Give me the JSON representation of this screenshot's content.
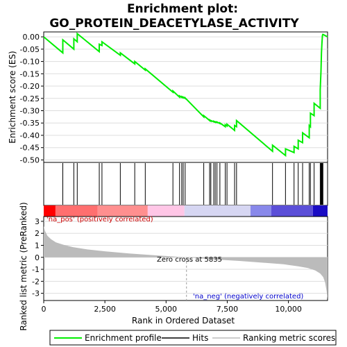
{
  "chart_data": {
    "type": "line",
    "title_line1": "Enrichment plot:",
    "title_line2": "GO_PROTEIN_DEACETYLASE_ACTIVITY",
    "xlabel": "Rank in Ordered Dataset",
    "ylabel_top": "Enrichment score (ES)",
    "ylabel_bottom": "Ranked list metric (PreRanked)",
    "xlim": [
      0,
      11600
    ],
    "es_ylim": [
      -0.51,
      0.02
    ],
    "metric_ylim": [
      -3.6,
      3.4
    ],
    "x_ticks": [
      0,
      2500,
      5000,
      7500,
      10000
    ],
    "x_tick_labels": [
      "0",
      "2,500",
      "5,000",
      "7,500",
      "10,000"
    ],
    "es_ticks": [
      0.0,
      -0.05,
      -0.1,
      -0.15,
      -0.2,
      -0.25,
      -0.3,
      -0.35,
      -0.4,
      -0.45,
      -0.5
    ],
    "es_tick_labels": [
      "0.00",
      "-0.05",
      "-0.10",
      "-0.15",
      "-0.20",
      "-0.25",
      "-0.30",
      "-0.35",
      "-0.40",
      "-0.45",
      "-0.50"
    ],
    "metric_ticks": [
      3,
      2,
      1,
      0,
      -1,
      -2,
      -3
    ],
    "metric_tick_labels": [
      "3",
      "2",
      "1",
      "0",
      "-1",
      "-2",
      "-3"
    ],
    "hits": [
      780,
      1230,
      1370,
      2270,
      2380,
      3130,
      3720,
      4150,
      5280,
      5550,
      5640,
      5700,
      5780,
      6540,
      6780,
      6830,
      6950,
      7010,
      7080,
      7200,
      7420,
      7490,
      7800,
      7880,
      9350,
      9880,
      10230,
      10400,
      10580,
      10850,
      10900,
      11050,
      11300,
      11330,
      11350,
      11370,
      11390,
      11410
    ],
    "es_profile": {
      "x": [
        0,
        780,
        780,
        1230,
        1230,
        1370,
        1370,
        2270,
        2270,
        2380,
        2380,
        3130,
        3130,
        3720,
        3720,
        4150,
        4150,
        5280,
        5280,
        5550,
        5550,
        5640,
        5640,
        5700,
        5700,
        5780,
        5780,
        6540,
        6540,
        6780,
        6780,
        6830,
        6830,
        6950,
        6950,
        7010,
        7010,
        7080,
        7080,
        7200,
        7200,
        7420,
        7420,
        7490,
        7490,
        7800,
        7800,
        7880,
        7880,
        9350,
        9350,
        9880,
        9880,
        10230,
        10230,
        10400,
        10400,
        10580,
        10580,
        10850,
        10850,
        10900,
        10900,
        11050,
        11050,
        11300,
        11300,
        11330,
        11350,
        11370,
        11390,
        11410,
        11410,
        11600
      ],
      "y": [
        0.0,
        -0.065,
        -0.012,
        -0.05,
        -0.008,
        -0.02,
        0.013,
        -0.06,
        -0.03,
        -0.035,
        -0.02,
        -0.075,
        -0.065,
        -0.11,
        -0.1,
        -0.135,
        -0.13,
        -0.225,
        -0.22,
        -0.245,
        -0.24,
        -0.246,
        -0.243,
        -0.247,
        -0.245,
        -0.25,
        -0.248,
        -0.325,
        -0.32,
        -0.34,
        -0.338,
        -0.342,
        -0.34,
        -0.345,
        -0.343,
        -0.347,
        -0.345,
        -0.348,
        -0.346,
        -0.352,
        -0.35,
        -0.365,
        -0.357,
        -0.362,
        -0.355,
        -0.38,
        -0.36,
        -0.365,
        -0.34,
        -0.465,
        -0.44,
        -0.482,
        -0.455,
        -0.47,
        -0.445,
        -0.455,
        -0.42,
        -0.43,
        -0.39,
        -0.41,
        -0.36,
        -0.365,
        -0.31,
        -0.32,
        -0.27,
        -0.29,
        -0.215,
        -0.14,
        -0.065,
        -0.025,
        0.005,
        0.012,
        0.01,
        0.0
      ]
    },
    "heat_bands": [
      {
        "x0": 0,
        "x1": 480,
        "color": "#ff0000"
      },
      {
        "x0": 480,
        "x1": 2200,
        "color": "#ff6f6f"
      },
      {
        "x0": 2200,
        "x1": 4250,
        "color": "#ff8f8f"
      },
      {
        "x0": 4250,
        "x1": 5750,
        "color": "#ffc6e6"
      },
      {
        "x0": 5750,
        "x1": 8450,
        "color": "#d6d6f2"
      },
      {
        "x0": 8450,
        "x1": 9300,
        "color": "#8888ea"
      },
      {
        "x0": 9300,
        "x1": 11000,
        "color": "#5b4fd8"
      },
      {
        "x0": 11000,
        "x1": 11600,
        "color": "#1a0cc4"
      }
    ],
    "metric_curve": {
      "x": [
        0,
        50,
        150,
        300,
        500,
        800,
        1200,
        1800,
        2500,
        3500,
        4500,
        5835,
        7000,
        8000,
        9000,
        9800,
        10400,
        10800,
        11100,
        11300,
        11420,
        11500,
        11560,
        11600
      ],
      "y": [
        2.6,
        2.2,
        1.8,
        1.5,
        1.25,
        1.05,
        0.85,
        0.65,
        0.5,
        0.32,
        0.18,
        0.0,
        -0.18,
        -0.3,
        -0.45,
        -0.58,
        -0.75,
        -0.9,
        -1.1,
        -1.35,
        -1.65,
        -2.1,
        -2.8,
        -3.5
      ]
    },
    "zero_cross_label": "Zero cross at 5835",
    "zero_cross_x": 5835,
    "pos_label": "'na_pos' (positively correlated)",
    "neg_label": "'na_neg' (negatively correlated)",
    "legend": [
      "Enrichment profile",
      "Hits",
      "Ranking metric scores"
    ],
    "colors": {
      "profile": "#00ee00",
      "hits": "#000000",
      "metric_fill": "#bbbbbb",
      "pos_text": "#cc0000",
      "neg_text": "#0000cc",
      "grid": "#dddddd"
    }
  }
}
